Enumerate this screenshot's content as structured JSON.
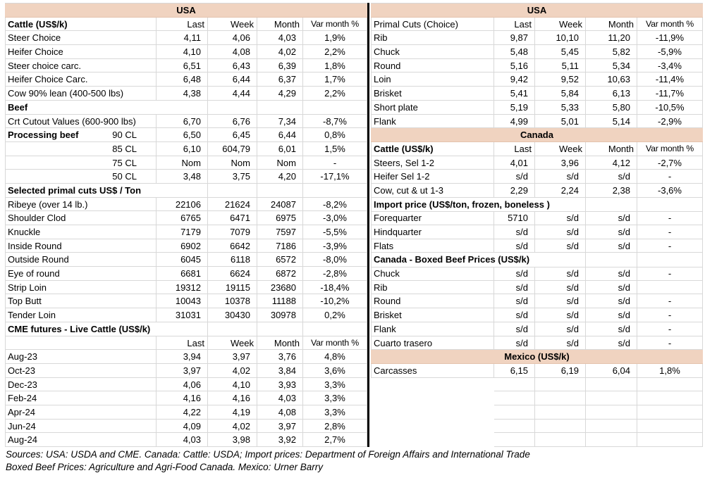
{
  "colors": {
    "band": "#f0d3c0",
    "grid": "#d8d8d8",
    "divider": "#000000",
    "background": "#ffffff",
    "text": "#000000"
  },
  "columns": {
    "last": "Last",
    "week": "Week",
    "month": "Month",
    "var": "Var month %"
  },
  "left_table": {
    "rows": [
      {
        "t": "band",
        "label": "USA"
      },
      {
        "t": "header",
        "label": "Cattle (US$/k)",
        "label_bold": true
      },
      {
        "t": "data",
        "label": "Steer Choice",
        "v": [
          "4,11",
          "4,06",
          "4,03",
          "1,9%"
        ]
      },
      {
        "t": "data",
        "label": "Heifer Choice",
        "v": [
          "4,10",
          "4,08",
          "4,02",
          "2,2%"
        ]
      },
      {
        "t": "data",
        "label": "Steer choice carc.",
        "v": [
          "6,51",
          "6,43",
          "6,39",
          "1,8%"
        ]
      },
      {
        "t": "data",
        "label": "Heifer Choice Carc.",
        "v": [
          "6,48",
          "6,44",
          "6,37",
          "1,7%"
        ]
      },
      {
        "t": "data",
        "label": "Cow 90% lean (400-500 lbs)",
        "v": [
          "4,38",
          "4,44",
          "4,29",
          "2,2%"
        ]
      },
      {
        "t": "section",
        "label": "Beef"
      },
      {
        "t": "data",
        "label": "Crt Cutout Values (600-900 lbs)",
        "v": [
          "6,70",
          "6,76",
          "7,34",
          "-8,7%"
        ]
      },
      {
        "t": "data",
        "label": "Processing beef",
        "label_bold": true,
        "sub": "90 CL",
        "v": [
          "6,50",
          "6,45",
          "6,44",
          "0,8%"
        ]
      },
      {
        "t": "data",
        "sub": "85 CL",
        "v": [
          "6,10",
          "604,79",
          "6,01",
          "1,5%"
        ]
      },
      {
        "t": "data",
        "sub": "75 CL",
        "v": [
          "Nom",
          "Nom",
          "Nom",
          "-"
        ]
      },
      {
        "t": "data",
        "sub": "50 CL",
        "v": [
          "3,48",
          "3,75",
          "4,20",
          "-17,1%"
        ]
      },
      {
        "t": "section",
        "label": "Selected primal cuts US$ / Ton"
      },
      {
        "t": "data",
        "label": "Ribeye (over 14 lb.)",
        "v": [
          "22106",
          "21624",
          "24087",
          "-8,2%"
        ]
      },
      {
        "t": "data",
        "label": "Shoulder Clod",
        "v": [
          "6765",
          "6471",
          "6975",
          "-3,0%"
        ]
      },
      {
        "t": "data",
        "label": "Knuckle",
        "v": [
          "7179",
          "7079",
          "7597",
          "-5,5%"
        ]
      },
      {
        "t": "data",
        "label": "Inside Round",
        "v": [
          "6902",
          "6642",
          "7186",
          "-3,9%"
        ]
      },
      {
        "t": "data",
        "label": "Outside Round",
        "v": [
          "6045",
          "6118",
          "6572",
          "-8,0%"
        ]
      },
      {
        "t": "data",
        "label": "Eye of round",
        "v": [
          "6681",
          "6624",
          "6872",
          "-2,8%"
        ]
      },
      {
        "t": "data",
        "label": "Strip Loin",
        "v": [
          "19312",
          "19115",
          "23680",
          "-18,4%"
        ]
      },
      {
        "t": "data",
        "label": "Top Butt",
        "v": [
          "10043",
          "10378",
          "11188",
          "-10,2%"
        ]
      },
      {
        "t": "data",
        "label": "Tender Loin",
        "v": [
          "31031",
          "30430",
          "30978",
          "0,2%"
        ]
      },
      {
        "t": "section",
        "label": "CME futures - Live Cattle (US$/k)"
      },
      {
        "t": "header",
        "label": "",
        "label_bold": false
      },
      {
        "t": "data",
        "label": "Aug-23",
        "v": [
          "3,94",
          "3,97",
          "3,76",
          "4,8%"
        ]
      },
      {
        "t": "data",
        "label": "Oct-23",
        "v": [
          "3,97",
          "4,02",
          "3,84",
          "3,6%"
        ]
      },
      {
        "t": "data",
        "label": "Dec-23",
        "v": [
          "4,06",
          "4,10",
          "3,93",
          "3,3%"
        ]
      },
      {
        "t": "data",
        "label": "Feb-24",
        "v": [
          "4,16",
          "4,16",
          "4,03",
          "3,3%"
        ]
      },
      {
        "t": "data",
        "label": "Apr-24",
        "v": [
          "4,22",
          "4,19",
          "4,08",
          "3,3%"
        ]
      },
      {
        "t": "data",
        "label": "Jun-24",
        "v": [
          "4,09",
          "4,02",
          "3,97",
          "2,8%"
        ]
      },
      {
        "t": "data",
        "label": "Aug-24",
        "v": [
          "4,03",
          "3,98",
          "3,92",
          "2,7%"
        ]
      }
    ]
  },
  "right_table": {
    "rows": [
      {
        "t": "band",
        "label": "USA"
      },
      {
        "t": "header",
        "label": "Primal Cuts (Choice)",
        "label_bold": false
      },
      {
        "t": "data",
        "label": "Rib",
        "v": [
          "9,87",
          "10,10",
          "11,20",
          "-11,9%"
        ]
      },
      {
        "t": "data",
        "label": "Chuck",
        "v": [
          "5,48",
          "5,45",
          "5,82",
          "-5,9%"
        ]
      },
      {
        "t": "data",
        "label": "Round",
        "v": [
          "5,16",
          "5,11",
          "5,34",
          "-3,4%"
        ]
      },
      {
        "t": "data",
        "label": "Loin",
        "v": [
          "9,42",
          "9,52",
          "10,63",
          "-11,4%"
        ]
      },
      {
        "t": "data",
        "label": "Brisket",
        "v": [
          "5,41",
          "5,84",
          "6,13",
          "-11,7%"
        ]
      },
      {
        "t": "data",
        "label": "Short plate",
        "v": [
          "5,19",
          "5,33",
          "5,80",
          "-10,5%"
        ]
      },
      {
        "t": "data",
        "label": "Flank",
        "v": [
          "4,99",
          "5,01",
          "5,14",
          "-2,9%"
        ]
      },
      {
        "t": "band",
        "label": "Canada"
      },
      {
        "t": "header",
        "label": "Cattle (US$/k)",
        "label_bold": true
      },
      {
        "t": "data",
        "label": "Steers, Sel 1-2",
        "v": [
          "4,01",
          "3,96",
          "4,12",
          "-2,7%"
        ]
      },
      {
        "t": "data",
        "label": "Heifer Sel 1-2",
        "v": [
          "s/d",
          "s/d",
          "s/d",
          "-"
        ]
      },
      {
        "t": "data",
        "label": "Cow, cut & ut 1-3",
        "v": [
          "2,29",
          "2,24",
          "2,38",
          "-3,6%"
        ]
      },
      {
        "t": "section",
        "label": "Import price (US$/ton, frozen, boneless )"
      },
      {
        "t": "data",
        "label": "Forequarter",
        "v": [
          "5710",
          "s/d",
          "s/d",
          "-"
        ]
      },
      {
        "t": "data",
        "label": "Hindquarter",
        "v": [
          "s/d",
          "s/d",
          "s/d",
          "-"
        ]
      },
      {
        "t": "data",
        "label": "Flats",
        "v": [
          "s/d",
          "s/d",
          "s/d",
          "-"
        ]
      },
      {
        "t": "section",
        "label": "Canada - Boxed Beef Prices (US$/k)"
      },
      {
        "t": "data",
        "label": "Chuck",
        "v": [
          "s/d",
          "s/d",
          "s/d",
          "-"
        ]
      },
      {
        "t": "data",
        "label": "Rib",
        "v": [
          "s/d",
          "s/d",
          "s/d",
          ""
        ]
      },
      {
        "t": "data",
        "label": "Round",
        "v": [
          "s/d",
          "s/d",
          "s/d",
          "-"
        ]
      },
      {
        "t": "data",
        "label": "Brisket",
        "v": [
          "s/d",
          "s/d",
          "s/d",
          "-"
        ]
      },
      {
        "t": "data",
        "label": "Flank",
        "v": [
          "s/d",
          "s/d",
          "s/d",
          "-"
        ]
      },
      {
        "t": "data",
        "label": "Cuarto trasero",
        "v": [
          "s/d",
          "s/d",
          "s/d",
          "-"
        ]
      },
      {
        "t": "band",
        "label": "Mexico (US$/k)"
      },
      {
        "t": "data",
        "label": "Carcasses",
        "v": [
          "6,15",
          "6,19",
          "6,04",
          "1,8%"
        ]
      },
      {
        "t": "empty"
      },
      {
        "t": "empty"
      },
      {
        "t": "empty"
      },
      {
        "t": "empty"
      },
      {
        "t": "empty"
      }
    ]
  },
  "footer": {
    "line1": "Sources: USA: USDA and CME. Canada: Cattle: USDA; Import prices: Department of Foreign Affairs and International Trade",
    "line2": "Boxed Beef Prices: Agriculture and Agri-Food Canada. Mexico: Urner Barry"
  }
}
